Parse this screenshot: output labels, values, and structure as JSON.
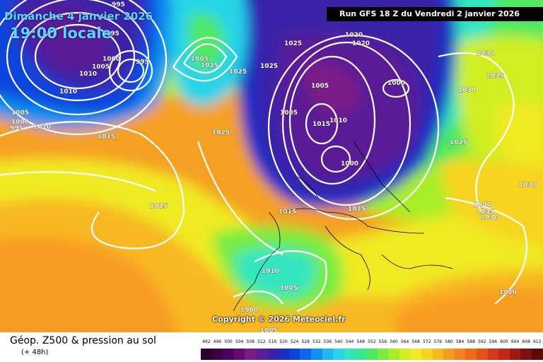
{
  "map": {
    "title_date": "Dimanche 4 janvier 2026",
    "title_time": "19:00 locale",
    "run_banner": "Run GFS 18 Z du Vendredi 2 janvier 2026",
    "copyright": "Copyright © 2026 Meteociel.fr",
    "pressure_labels": [
      "995",
      "995",
      "1000",
      "1005",
      "1010",
      "995",
      "1010",
      "1005",
      "1000",
      "995",
      "1010",
      "1015",
      "1005",
      "1015",
      "1025",
      "1025",
      "1025",
      "1025",
      "1020",
      "1020",
      "1030",
      "1035",
      "1005",
      "1000",
      "1010",
      "1015",
      "1005",
      "1000",
      "1030",
      "1025",
      "1015",
      "1015",
      "1030",
      "1040",
      "1035",
      "1030",
      "1025",
      "1020",
      "1010",
      "1005",
      "1000",
      "1005"
    ],
    "scale_values": [
      "492",
      "496",
      "500",
      "504",
      "508",
      "512",
      "516",
      "520",
      "524",
      "528",
      "532",
      "536",
      "540",
      "544",
      "548",
      "552",
      "556",
      "560",
      "564",
      "568",
      "572",
      "576",
      "580",
      "584",
      "588",
      "592",
      "596",
      "600",
      "604",
      "608",
      "612"
    ],
    "scale_colors": [
      "#2a0030",
      "#3c0047",
      "#50005e",
      "#650a70",
      "#7b1c86",
      "#5a1e96",
      "#3a22a8",
      "#1a2ec4",
      "#0a44dc",
      "#0a66f0",
      "#1090f0",
      "#20b6f0",
      "#28d4e8",
      "#30e6c0",
      "#38e890",
      "#50e860",
      "#78ec40",
      "#a8ee28",
      "#d0ee20",
      "#f0ea20",
      "#f8d420",
      "#f8b820",
      "#f89c20",
      "#f88020",
      "#f06818",
      "#e85018",
      "#d83818",
      "#c02818",
      "#a01810",
      "#801010",
      "#600808"
    ]
  },
  "footer": {
    "title": "Géop. Z500 & pression au sol",
    "subtitle": "(+ 48h)"
  }
}
